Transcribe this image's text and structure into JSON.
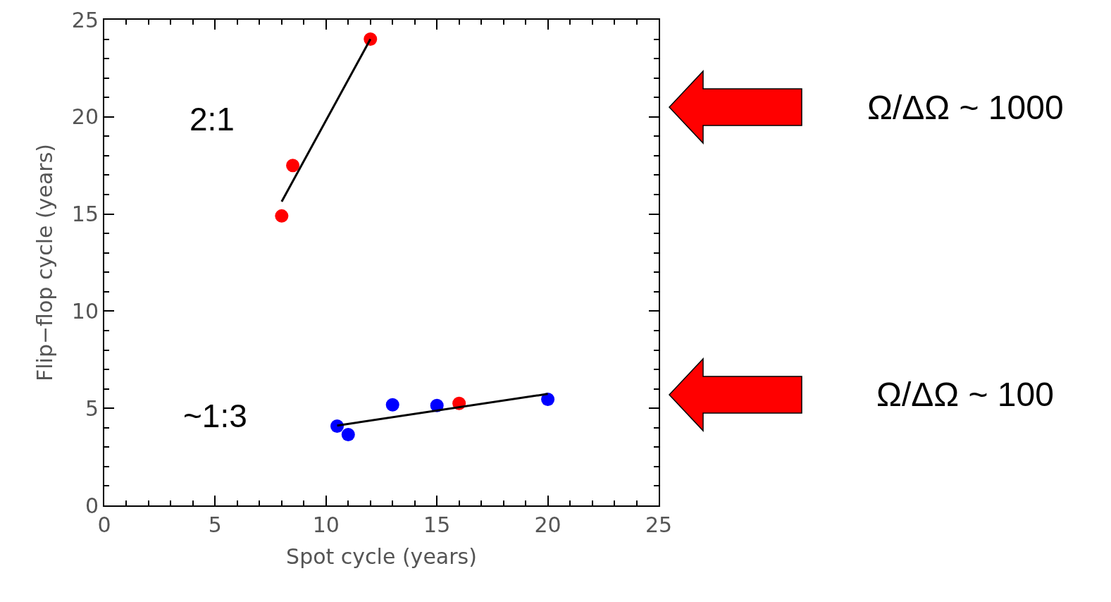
{
  "chart_data": {
    "type": "scatter",
    "xlabel": "Spot cycle (years)",
    "ylabel": "Flip−flop cycle (years)",
    "xlim": [
      0,
      25
    ],
    "xticks": [
      0,
      5,
      10,
      15,
      20,
      25
    ],
    "ylim": [
      0,
      25
    ],
    "yticks": [
      0,
      5,
      10,
      15,
      20,
      25
    ],
    "grid": false,
    "marker": "circle",
    "series": [
      {
        "color": "#ff0000",
        "x": [
          8,
          8.5,
          12,
          16
        ],
        "values": [
          14.9,
          17.5,
          24.0,
          5.25
        ]
      },
      {
        "color": "#0000ff",
        "x": [
          10.5,
          11,
          13,
          15,
          20
        ],
        "values": [
          4.08,
          3.65,
          5.18,
          5.14,
          5.46
        ]
      },
      {
        "type": "line",
        "color": "#000000",
        "marker": "none",
        "line_style": "solid",
        "x": [
          8,
          12
        ],
        "values": [
          15.64,
          24.0
        ]
      },
      {
        "type": "line",
        "color": "#000000",
        "marker": "none",
        "line_style": "solid",
        "x": [
          10.5,
          20
        ],
        "values": [
          4.11,
          5.74
        ]
      }
    ],
    "annotations": [
      "2:1",
      "~1:3",
      "Ω/ΔΩ ~ 1000",
      "Ω/ΔΩ ~ 100"
    ]
  }
}
